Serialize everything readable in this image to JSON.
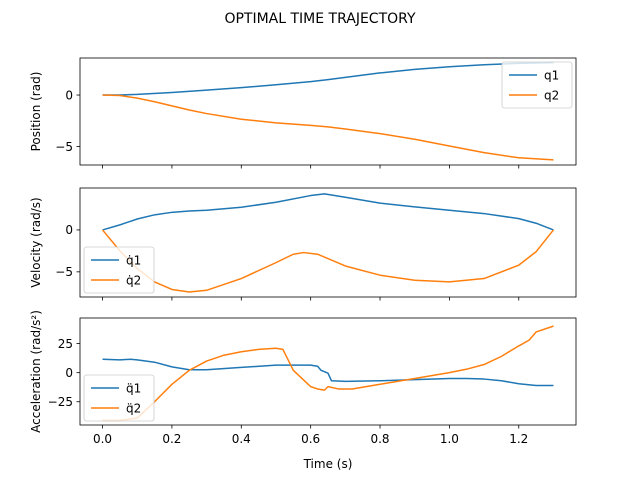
{
  "chart_data": {
    "type": "line",
    "title": "OPTIMAL TIME TRAJECTORY",
    "xlabel": "Time (s)",
    "xlim": [
      -0.065,
      1.365
    ],
    "xticks": [
      0.0,
      0.2,
      0.4,
      0.6,
      0.8,
      1.0,
      1.2
    ],
    "xtick_labels": [
      "0.0",
      "0.2",
      "0.4",
      "0.6",
      "0.8",
      "1.0",
      "1.2"
    ],
    "colors": {
      "q1": "#1f77b4",
      "q2": "#ff7f0e"
    },
    "subplots": [
      {
        "ylabel": "Position (rad)",
        "ylim": [
          -6.8,
          3.6
        ],
        "yticks": [
          0,
          -5
        ],
        "ytick_labels": [
          "0",
          "−5"
        ],
        "legend_loc": "upper-right",
        "series": [
          {
            "name": "q1",
            "x": [
              0,
              0.05,
              0.1,
              0.2,
              0.3,
              0.4,
              0.5,
              0.6,
              0.65,
              0.7,
              0.8,
              0.9,
              1.0,
              1.1,
              1.2,
              1.3
            ],
            "values": [
              0,
              0.01,
              0.06,
              0.25,
              0.48,
              0.72,
              1.0,
              1.3,
              1.5,
              1.72,
              2.15,
              2.5,
              2.75,
              2.95,
              3.08,
              3.15
            ]
          },
          {
            "name": "q2",
            "x": [
              0,
              0.05,
              0.1,
              0.15,
              0.2,
              0.25,
              0.3,
              0.4,
              0.5,
              0.6,
              0.65,
              0.7,
              0.8,
              0.9,
              1.0,
              1.1,
              1.2,
              1.3
            ],
            "values": [
              0,
              -0.05,
              -0.3,
              -0.65,
              -1.05,
              -1.45,
              -1.8,
              -2.35,
              -2.7,
              -2.95,
              -3.1,
              -3.3,
              -3.75,
              -4.3,
              -4.95,
              -5.6,
              -6.1,
              -6.3
            ]
          }
        ]
      },
      {
        "ylabel": "Velocity (rad/s)",
        "ylim": [
          -8,
          5
        ],
        "yticks": [
          0,
          -5
        ],
        "ytick_labels": [
          "0",
          "−5"
        ],
        "legend_loc": "lower-left",
        "series": [
          {
            "name": "q̇1",
            "x": [
              0,
              0.05,
              0.1,
              0.15,
              0.2,
              0.25,
              0.3,
              0.4,
              0.5,
              0.6,
              0.64,
              0.7,
              0.8,
              0.9,
              1.0,
              1.1,
              1.2,
              1.25,
              1.3
            ],
            "values": [
              0,
              0.6,
              1.3,
              1.8,
              2.1,
              2.25,
              2.35,
              2.7,
              3.3,
              4.1,
              4.3,
              3.9,
              3.2,
              2.75,
              2.35,
              1.95,
              1.35,
              0.8,
              0
            ]
          },
          {
            "name": "q̇2",
            "x": [
              0,
              0.05,
              0.1,
              0.15,
              0.2,
              0.25,
              0.3,
              0.4,
              0.5,
              0.55,
              0.58,
              0.62,
              0.7,
              0.8,
              0.9,
              1.0,
              1.1,
              1.2,
              1.25,
              1.3
            ],
            "values": [
              0,
              -2.5,
              -4.6,
              -6.2,
              -7.1,
              -7.4,
              -7.2,
              -5.8,
              -3.9,
              -2.9,
              -2.7,
              -2.9,
              -4.3,
              -5.4,
              -6.0,
              -6.2,
              -5.8,
              -4.2,
              -2.6,
              0
            ]
          }
        ]
      },
      {
        "ylabel": "Acceleration (rad/s²)",
        "ylim": [
          -45,
          47
        ],
        "yticks": [
          25,
          0,
          -25
        ],
        "ytick_labels": [
          "25",
          "0",
          "−25"
        ],
        "legend_loc": "lower-left",
        "series": [
          {
            "name": "q̈1",
            "x": [
              0,
              0.05,
              0.08,
              0.1,
              0.15,
              0.2,
              0.25,
              0.3,
              0.4,
              0.5,
              0.6,
              0.62,
              0.63,
              0.65,
              0.66,
              0.7,
              0.8,
              0.9,
              1.0,
              1.05,
              1.1,
              1.15,
              1.2,
              1.25,
              1.3
            ],
            "values": [
              11.5,
              11,
              11.5,
              11,
              9,
              5,
              2.5,
              2.5,
              4.5,
              6.5,
              6.5,
              5.5,
              2,
              -0.5,
              -7,
              -7.5,
              -7,
              -6,
              -5,
              -5,
              -5.5,
              -7,
              -9.5,
              -11,
              -11
            ]
          },
          {
            "name": "q̈2",
            "x": [
              0,
              0.05,
              0.1,
              0.15,
              0.2,
              0.25,
              0.3,
              0.35,
              0.4,
              0.45,
              0.5,
              0.52,
              0.55,
              0.6,
              0.62,
              0.64,
              0.65,
              0.68,
              0.72,
              0.8,
              0.9,
              1.0,
              1.05,
              1.1,
              1.15,
              1.2,
              1.23,
              1.25,
              1.3
            ],
            "values": [
              -41,
              -41,
              -39,
              -25,
              -10,
              2,
              10,
              15,
              18,
              20,
              21,
              20,
              2,
              -12,
              -14,
              -15,
              -12,
              -14,
              -14,
              -10,
              -5,
              0,
              3,
              7,
              14,
              23,
              28,
              35,
              40
            ]
          }
        ]
      }
    ]
  }
}
